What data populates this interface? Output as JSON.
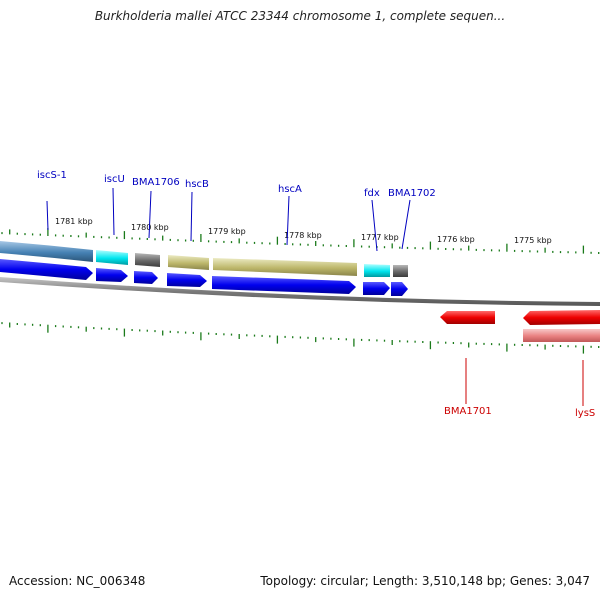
{
  "title": "Burkholderia mallei ATCC 23344 chromosome 1, complete sequen...",
  "footer": {
    "accession": "Accession: NC_006348",
    "stats": "Topology: circular; Length: 3,510,148 bp; Genes: 3,047"
  },
  "colors": {
    "forward_label": "#0000c0",
    "reverse_label": "#cc0000",
    "tick": "#1a7a1a",
    "backbone": "#808080"
  },
  "kbp_ticks": [
    {
      "label": "1781 kbp"
    },
    {
      "label": "1780 kbp"
    },
    {
      "label": "1779 kbp"
    },
    {
      "label": "1778 kbp"
    },
    {
      "label": "1777 kbp"
    },
    {
      "label": "1776 kbp"
    },
    {
      "label": "1775 kbp"
    }
  ],
  "forward_genes": [
    {
      "name": "iscS-1",
      "feature_color": "#4682b4"
    },
    {
      "name": "iscU",
      "feature_color": "#00e5ee"
    },
    {
      "name": "BMA1706",
      "feature_color": "#696969"
    },
    {
      "name": "hscB",
      "feature_color": "#bdb76b"
    },
    {
      "name": "hscA",
      "feature_color": "#bdb76b"
    },
    {
      "name": "fdx",
      "feature_color": "#00e5ee"
    },
    {
      "name": "BMA1702",
      "feature_color": "#696969"
    }
  ],
  "reverse_genes": [
    {
      "name": "BMA1701",
      "feature_color": "#ee0000"
    },
    {
      "name": "lysS",
      "feature_color": "#ee0000"
    }
  ]
}
